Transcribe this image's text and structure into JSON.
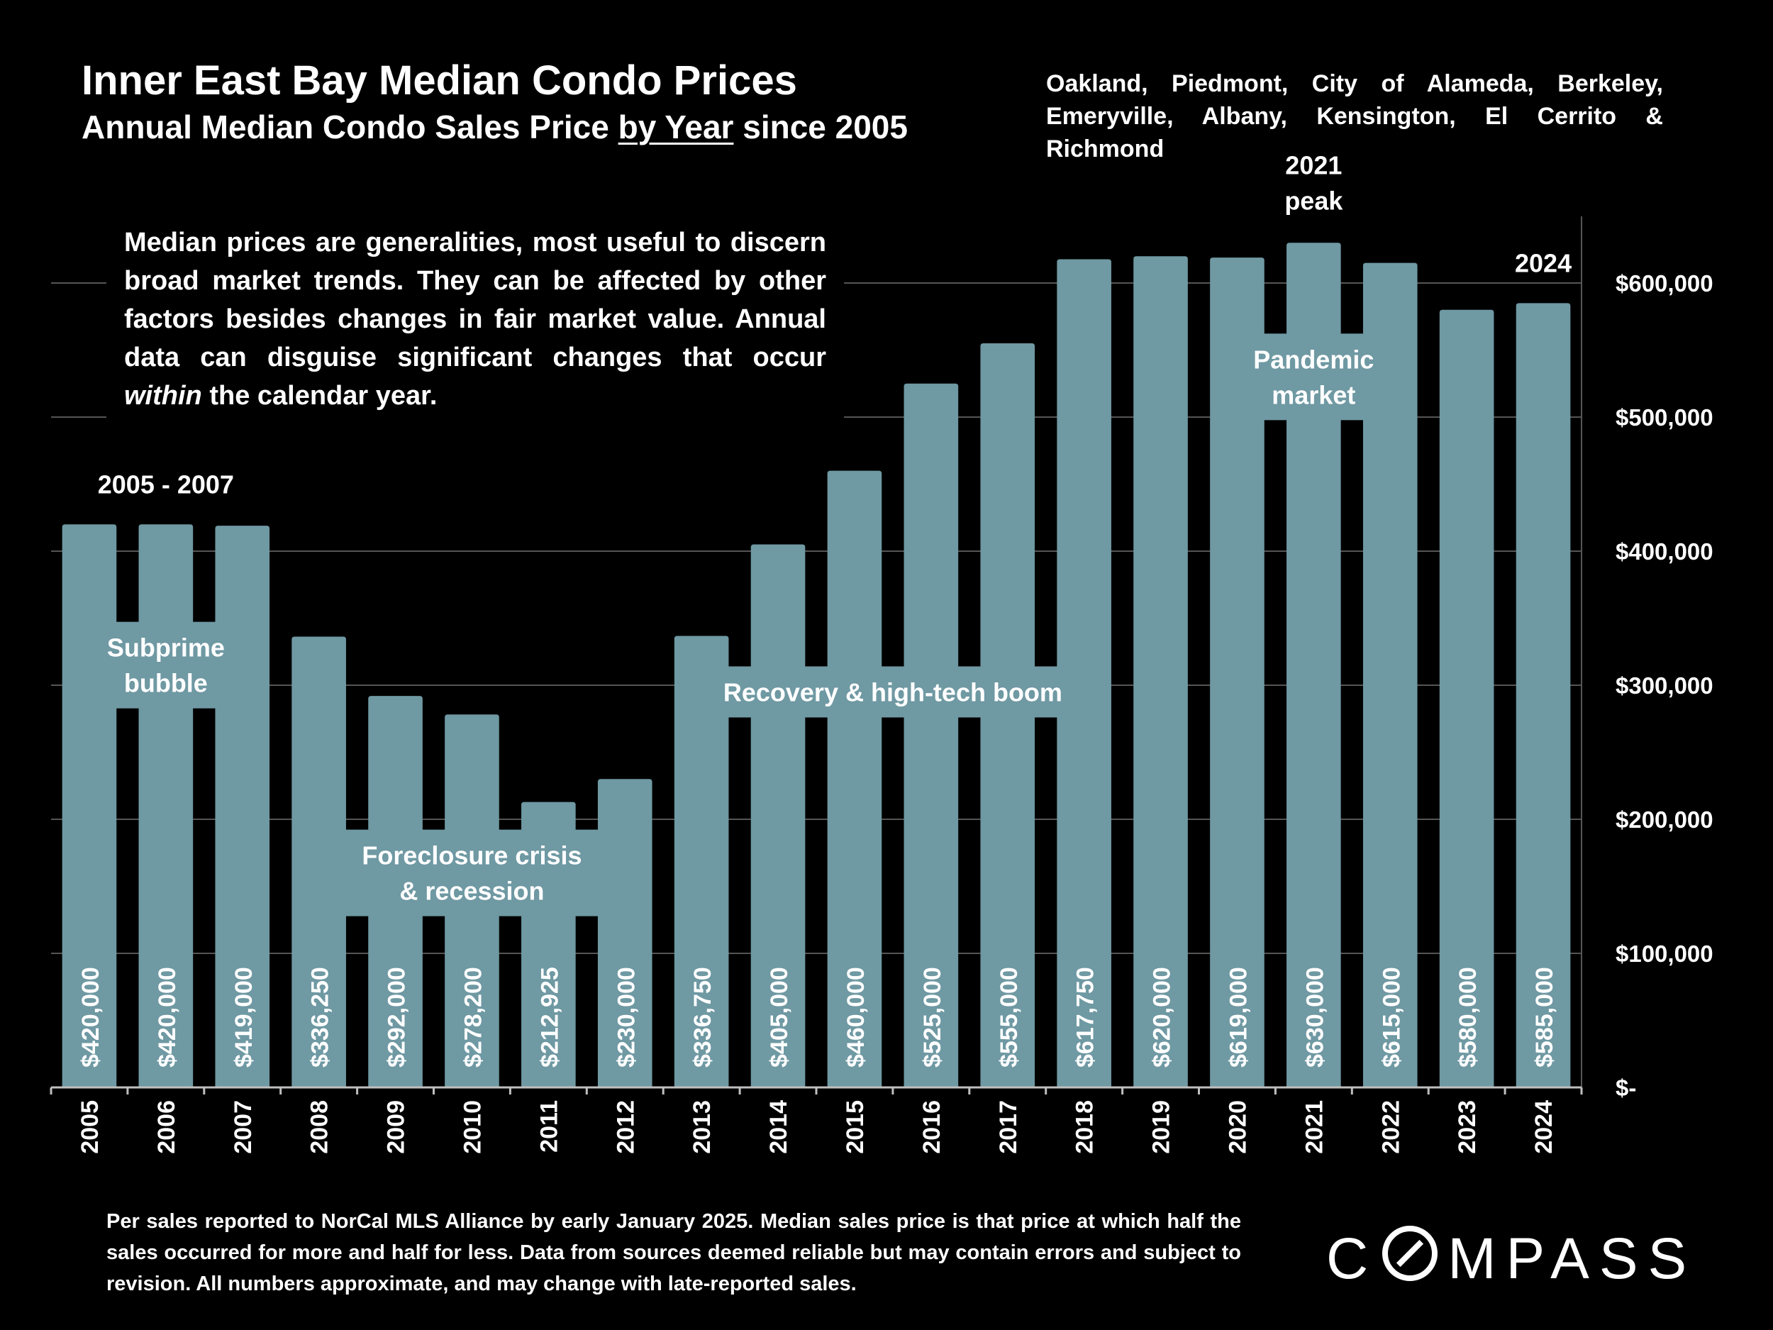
{
  "title": "Inner East Bay Median Condo Prices",
  "subtitle": {
    "before": "Annual Median Condo Sales Price ",
    "underlined": "by Year",
    "after": " since 2005"
  },
  "region_lines": [
    "Oakland, Piedmont, City of Alameda, Berkeley,",
    "Emeryville, Albany, Kensington, El Cerrito & Richmond"
  ],
  "note": {
    "part1": "Median prices are generalities, most useful to discern broad market trends. They can be affected by other factors besides changes in fair market value. Annual data can disguise significant changes that occur ",
    "italic": "within",
    "part2": " the calendar year."
  },
  "footer": "Per sales reported to NorCal MLS Alliance by early January 2025. Median sales price is that price at which half the sales occurred for more and half for less. Data from sources deemed reliable but may contain errors and subject to revision. All numbers approximate, and may change with late-reported sales.",
  "logo": {
    "before": "C",
    "after": "MPASS"
  },
  "colors": {
    "bar": "#6f99a3",
    "background": "#000000",
    "text": "#ffffff",
    "grid": "#555555"
  },
  "chart_data": {
    "type": "bar",
    "categories": [
      "2005",
      "2006",
      "2007",
      "2008",
      "2009",
      "2010",
      "2011",
      "2012",
      "2013",
      "2014",
      "2015",
      "2016",
      "2017",
      "2018",
      "2019",
      "2020",
      "2021",
      "2022",
      "2023",
      "2024"
    ],
    "values": [
      420000,
      420000,
      419000,
      336250,
      292000,
      278200,
      212925,
      230000,
      336750,
      405000,
      460000,
      525000,
      555000,
      617750,
      620000,
      619000,
      630000,
      615000,
      580000,
      585000
    ],
    "value_labels": [
      "$420,000",
      "$420,000",
      "$419,000",
      "$336,250",
      "$292,000",
      "$278,200",
      "$212,925",
      "$230,000",
      "$336,750",
      "$405,000",
      "$460,000",
      "$525,000",
      "$555,000",
      "$617,750",
      "$620,000",
      "$619,000",
      "$630,000",
      "$615,000",
      "$580,000",
      "$585,000"
    ],
    "ylim": [
      0,
      650000
    ],
    "y_ticks": [
      0,
      100000,
      200000,
      300000,
      400000,
      500000,
      600000
    ],
    "y_tick_labels": [
      "$-",
      "$100,000",
      "$200,000",
      "$300,000",
      "$400,000",
      "$500,000",
      "$600,000"
    ],
    "y_axis_side": "right",
    "grid": true,
    "annotations": [
      {
        "text": [
          "2005 - 2007"
        ],
        "kind": "top-label",
        "from": 0,
        "to": 2,
        "y": 450000
      },
      {
        "text": [
          "Subprime",
          "bubble"
        ],
        "kind": "boxed",
        "from": 0,
        "to": 2,
        "y": 315000
      },
      {
        "text": [
          "Foreclosure crisis",
          "& recession"
        ],
        "kind": "boxed",
        "from": 3,
        "to": 7,
        "y": 160000
      },
      {
        "text": [
          "Recovery & high-tech boom"
        ],
        "kind": "boxed",
        "from": 8,
        "to": 13,
        "y": 295000
      },
      {
        "text": [
          "Pandemic",
          "market"
        ],
        "kind": "boxed",
        "from": 15,
        "to": 17,
        "y": 530000
      },
      {
        "text": [
          "2021",
          "peak"
        ],
        "kind": "top-label",
        "from": 16,
        "to": 16,
        "y": 675000
      },
      {
        "text": [
          "2024"
        ],
        "kind": "top-label",
        "from": 19,
        "to": 19,
        "y": 615000
      }
    ]
  }
}
